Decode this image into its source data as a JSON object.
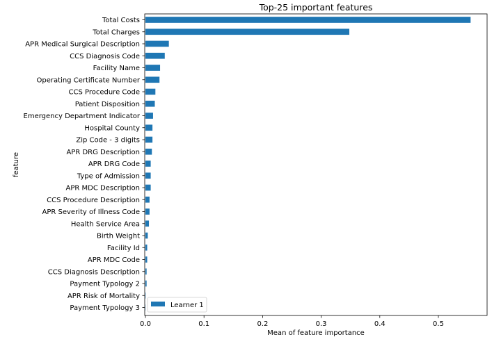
{
  "chart_data": {
    "type": "bar",
    "orientation": "horizontal",
    "title": "Top-25 important features",
    "xlabel": "Mean of feature importance",
    "ylabel": "feature",
    "xlim": [
      0,
      0.58
    ],
    "xticks": [
      "0.0",
      "0.1",
      "0.2",
      "0.3",
      "0.4",
      "0.5"
    ],
    "grid": false,
    "legend_position": "lower left",
    "categories": [
      "Total Costs",
      "Total Charges",
      "APR Medical Surgical Description",
      "CCS Diagnosis Code",
      "Facility Name",
      "Operating Certificate Number",
      "CCS Procedure Code",
      "Patient Disposition",
      "Emergency Department Indicator",
      "Hospital County",
      "Zip Code - 3 digits",
      "APR DRG Description",
      "APR DRG Code",
      "Type of Admission",
      "APR MDC Description",
      "CCS Procedure Description",
      "APR Severity of Illness Code",
      "Health Service Area",
      "Birth Weight",
      "Facility Id",
      "APR MDC Code",
      "CCS Diagnosis Description",
      "Payment Typology 2",
      "APR Risk of Mortality",
      "Payment Typology 3"
    ],
    "series": [
      {
        "name": "Learner 1",
        "color": "#1f77b4",
        "values": [
          0.555,
          0.348,
          0.04,
          0.033,
          0.025,
          0.024,
          0.017,
          0.016,
          0.013,
          0.012,
          0.012,
          0.011,
          0.009,
          0.009,
          0.009,
          0.007,
          0.007,
          0.006,
          0.004,
          0.003,
          0.003,
          0.002,
          0.002,
          0.0005,
          0.0003
        ]
      }
    ]
  }
}
